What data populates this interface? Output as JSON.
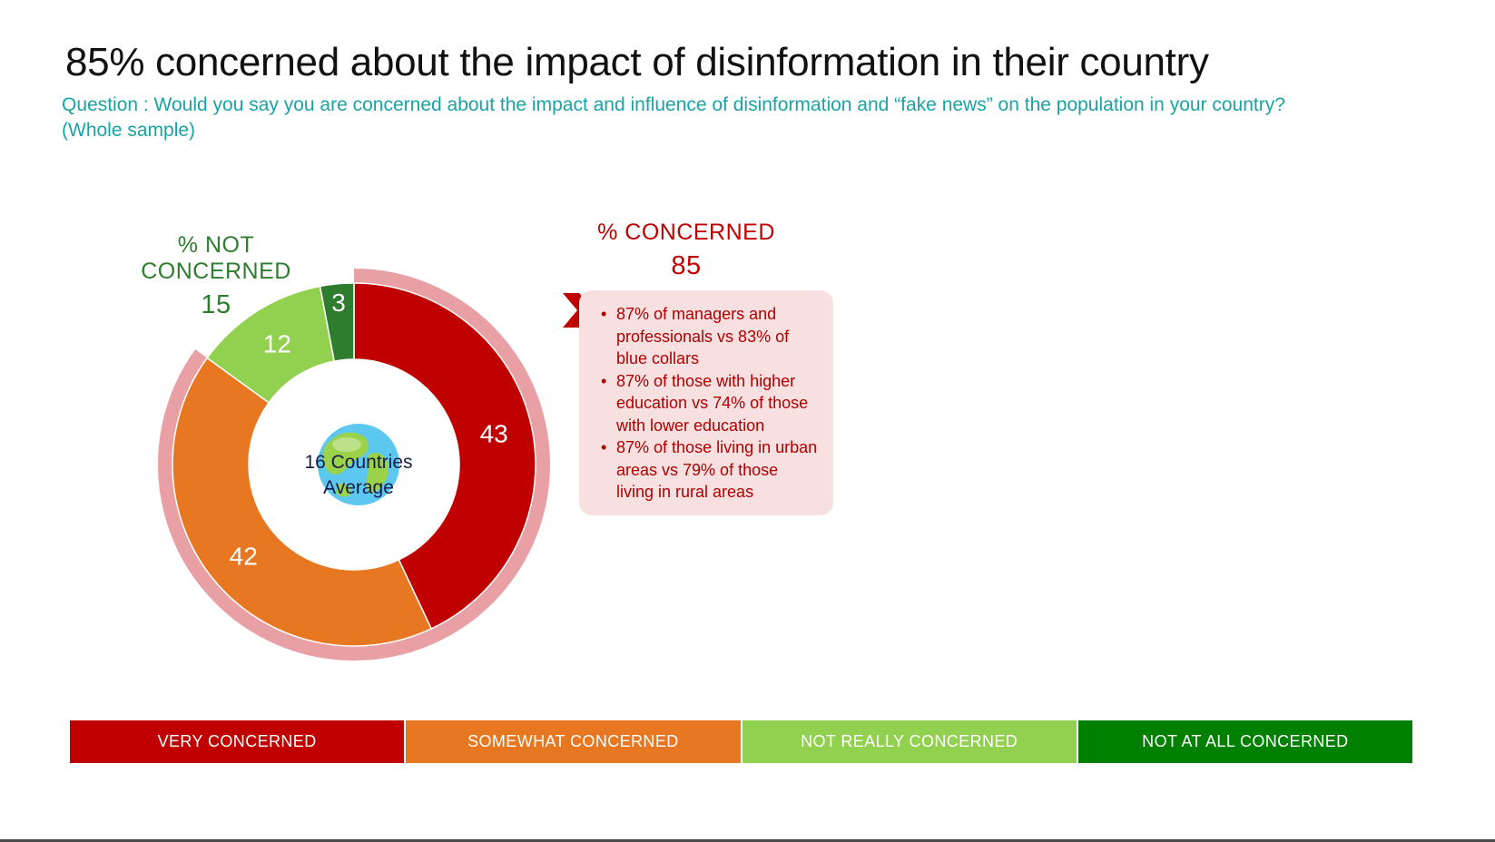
{
  "title": "85% concerned about the impact of disinformation in their country",
  "question": {
    "line1": "Question : Would you say you are concerned about the impact and influence of disinformation and “fake news” on the population in your country?",
    "line2": "(Whole sample)"
  },
  "not_concerned": {
    "label": "% NOT CONCERNED",
    "value": "15"
  },
  "concerned": {
    "label": "% CONCERNED",
    "value": "85"
  },
  "center": {
    "line1": "16 Countries",
    "line2": "Average",
    "icon": "globe-icon"
  },
  "callout": {
    "bullets": [
      [
        "87% of managers and",
        "professionals vs 83% of",
        "blue collars"
      ],
      [
        "87% of those with higher",
        "education vs 74% of those",
        "with lower education"
      ],
      [
        "87% of those living in urban",
        "areas vs 79% of those",
        "living in rural areas"
      ]
    ]
  },
  "legend": [
    {
      "label": "VERY CONCERNED",
      "color": "#c00000"
    },
    {
      "label": "SOMEWHAT CONCERNED",
      "color": "#e87722"
    },
    {
      "label": "NOT REALLY CONCERNED",
      "color": "#92d050"
    },
    {
      "label": "NOT AT ALL CONCERNED",
      "color": "#008000"
    }
  ],
  "chart_data": {
    "type": "pie",
    "categories": [
      "VERY CONCERNED",
      "SOMEWHAT CONCERNED",
      "NOT REALLY CONCERNED",
      "NOT AT ALL CONCERNED"
    ],
    "values": [
      43,
      42,
      12,
      3
    ],
    "colors": [
      "#c00000",
      "#e87722",
      "#92d050",
      "#2e7d2e"
    ],
    "outer_ring_color": "#e8a0a4",
    "outer_ring_covers": [
      "VERY CONCERNED",
      "SOMEWHAT CONCERNED"
    ]
  }
}
